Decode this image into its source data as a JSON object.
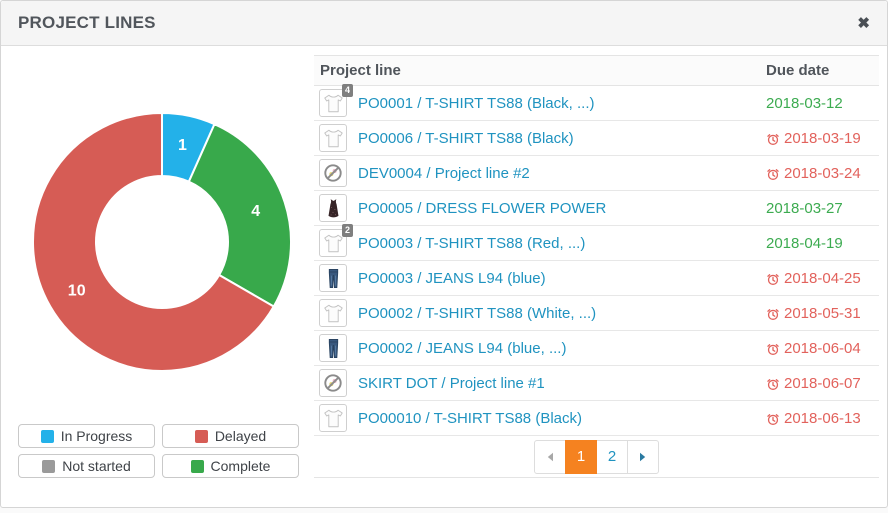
{
  "panel": {
    "title": "PROJECT LINES",
    "close_label": "✖"
  },
  "colors": {
    "in_progress": "#23b1e9",
    "delayed": "#d65c55",
    "not_started": "#9a9a9a",
    "complete": "#38a94b",
    "link": "#1f93c0",
    "due_late": "#e2625c",
    "due_ok": "#3cab50",
    "active_page": "#f58220"
  },
  "chart_data": {
    "type": "pie",
    "subtype": "donut",
    "title": "",
    "segments": [
      {
        "label": "In Progress",
        "value": 1,
        "color": "#23b1e9"
      },
      {
        "label": "Complete",
        "value": 4,
        "color": "#38a94b"
      },
      {
        "label": "Delayed",
        "value": 10,
        "color": "#d65c55"
      }
    ],
    "total": 15,
    "start_angle_deg": 0,
    "inner_radius_ratio": 0.51,
    "data_labels": [
      "1",
      "4",
      "10"
    ],
    "legend_position": "bottom-left",
    "legend": [
      {
        "label": "In Progress",
        "color": "#23b1e9"
      },
      {
        "label": "Delayed",
        "color": "#d65c55"
      },
      {
        "label": "Not started",
        "color": "#9a9a9a"
      },
      {
        "label": "Complete",
        "color": "#38a94b"
      }
    ]
  },
  "table": {
    "columns": {
      "line": "Project line",
      "due": "Due date"
    },
    "rows": [
      {
        "icon": "tshirt",
        "badge": "4",
        "title": "PO0001 / T-SHIRT TS88 (Black, ...)",
        "due_date": "2018-03-12",
        "status": "ok",
        "alarm": false
      },
      {
        "icon": "tshirt",
        "badge": null,
        "title": "PO0006 / T-SHIRT TS88 (Black)",
        "due_date": "2018-03-19",
        "status": "late",
        "alarm": true
      },
      {
        "icon": "ban",
        "badge": null,
        "title": "DEV0004 / Project line #2",
        "due_date": "2018-03-24",
        "status": "late",
        "alarm": true
      },
      {
        "icon": "dress",
        "badge": null,
        "title": "PO0005 / DRESS FLOWER POWER",
        "due_date": "2018-03-27",
        "status": "ok",
        "alarm": false
      },
      {
        "icon": "tshirt",
        "badge": "2",
        "title": "PO0003 / T-SHIRT TS88 (Red, ...)",
        "due_date": "2018-04-19",
        "status": "ok",
        "alarm": false
      },
      {
        "icon": "jeans",
        "badge": null,
        "title": "PO0003 / JEANS L94 (blue)",
        "due_date": "2018-04-25",
        "status": "late",
        "alarm": true
      },
      {
        "icon": "tshirt",
        "badge": null,
        "title": "PO0002 / T-SHIRT TS88 (White, ...)",
        "due_date": "2018-05-31",
        "status": "late",
        "alarm": true
      },
      {
        "icon": "jeans",
        "badge": null,
        "title": "PO0002 / JEANS L94 (blue, ...)",
        "due_date": "2018-06-04",
        "status": "late",
        "alarm": true
      },
      {
        "icon": "ban",
        "badge": null,
        "title": "SKIRT DOT / Project line #1",
        "due_date": "2018-06-07",
        "status": "late",
        "alarm": true
      },
      {
        "icon": "tshirt",
        "badge": null,
        "title": "PO00010 / T-SHIRT TS88 (Black)",
        "due_date": "2018-06-13",
        "status": "late",
        "alarm": true
      }
    ]
  },
  "pagination": {
    "prev_enabled": false,
    "next_enabled": true,
    "pages": [
      {
        "label": "1",
        "active": true
      },
      {
        "label": "2",
        "active": false
      }
    ]
  }
}
